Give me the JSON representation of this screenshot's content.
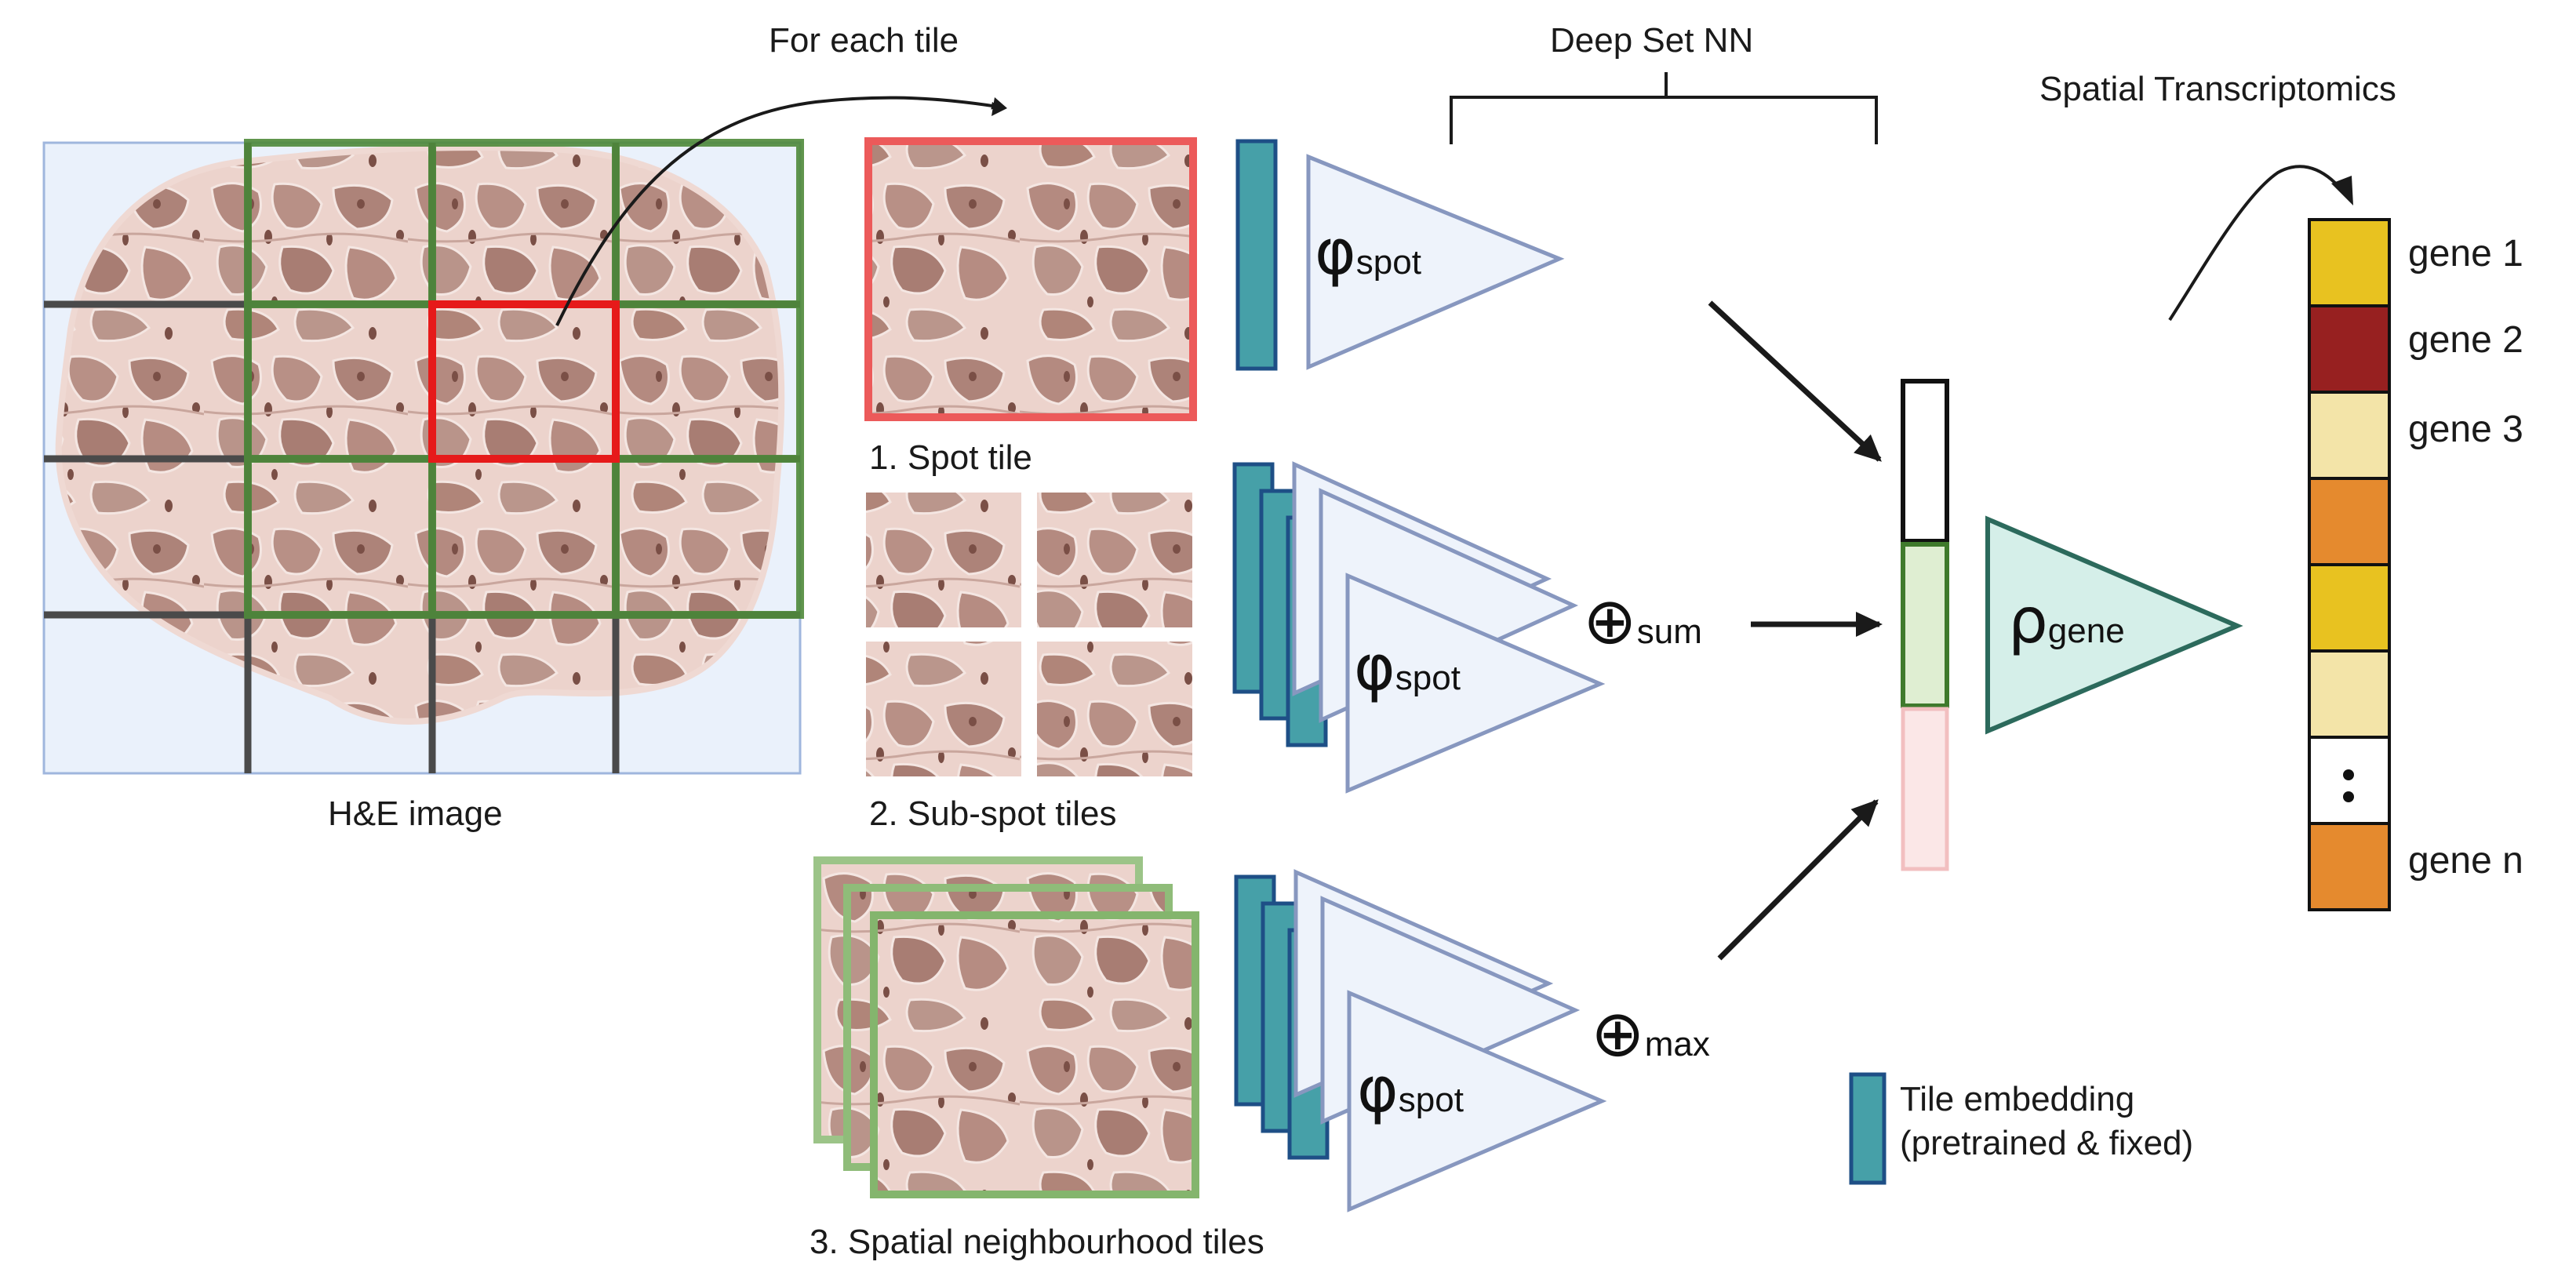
{
  "labels": {
    "for_each_tile": "For each tile",
    "deep_set": "Deep Set NN",
    "spatial_transcriptomics": "Spatial Transcriptomics",
    "he_image": "H&E image",
    "spot_tile": "1. Spot tile",
    "sub_spot_tiles": "2. Sub-spot tiles",
    "neighbourhood_tiles": "3. Spatial neighbourhood tiles",
    "legend_line1": "Tile embedding",
    "legend_line2": "(pretrained & fixed)"
  },
  "symbols": {
    "phi": "φ",
    "phi_sub": "spot",
    "rho": "ρ",
    "rho_sub": "gene",
    "oplus": "⊕",
    "sum_sub": "sum",
    "max_sub": "max"
  },
  "genes": [
    "gene 1",
    "gene 2",
    "gene 3",
    "gene n"
  ],
  "gene_ellipsis": ":",
  "colors": {
    "embedding": "#46a0a8",
    "embedding_border": "#1e4f86",
    "phi_fill": "#eef3fb",
    "phi_stroke": "#8797bf",
    "rho_fill": "#d5efe9",
    "rho_stroke": "#2c6a5c",
    "tissue": "#ecd3cc",
    "cell": "#b48a80",
    "grid_green": "#4f8a3a",
    "grid_dark": "#4a4a4a",
    "spot_red": "#e02020",
    "gene_yellow": "#e8c220",
    "gene_red": "#972020",
    "gene_pale": "#f3e4a8",
    "gene_orange": "#e58a2e"
  },
  "gene_column_colors": [
    "#e8c220",
    "#972020",
    "#f3e4a8",
    "#e58a2e",
    "#e8c220",
    "#f3e4a8",
    "#ffffff",
    "#e58a2e"
  ]
}
